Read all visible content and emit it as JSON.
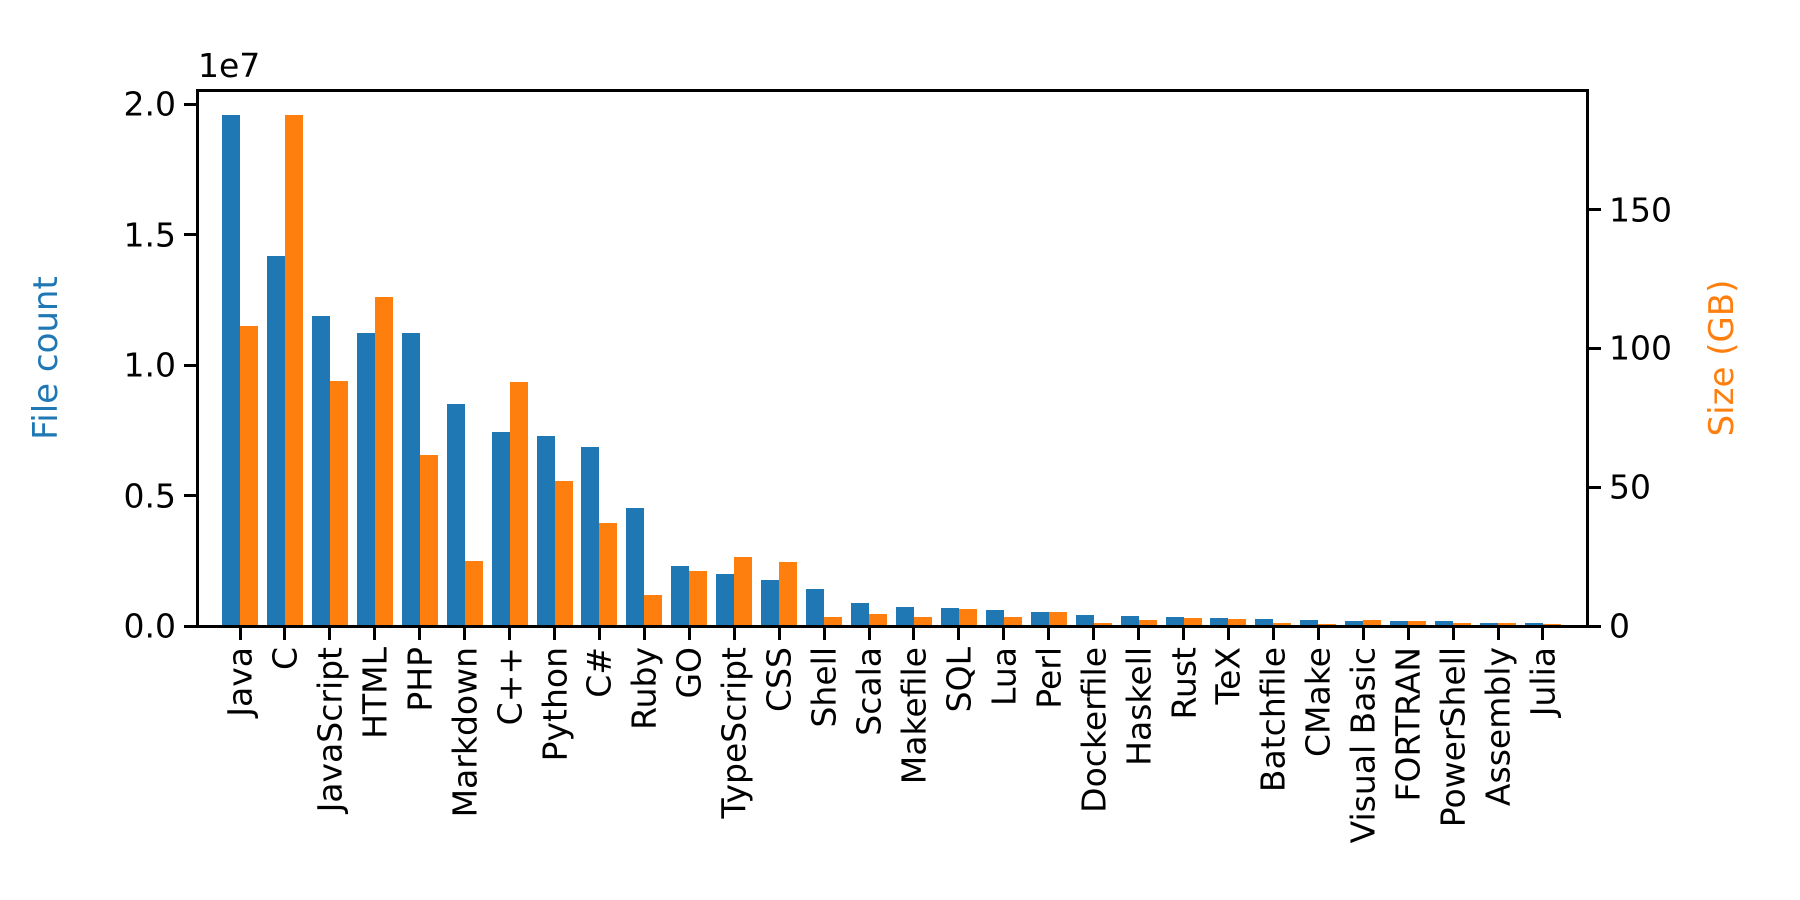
{
  "chart_data": {
    "type": "bar",
    "title": "",
    "grid": false,
    "legend_position": "none",
    "categories": [
      "Java",
      "C",
      "JavaScript",
      "HTML",
      "PHP",
      "Markdown",
      "C++",
      "Python",
      "C#",
      "Ruby",
      "GO",
      "TypeScript",
      "CSS",
      "Shell",
      "Scala",
      "Makefile",
      "SQL",
      "Lua",
      "Perl",
      "Dockerfile",
      "Haskell",
      "Rust",
      "TeX",
      "Batchfile",
      "CMake",
      "Visual Basic",
      "FORTRAN",
      "PowerShell",
      "Assembly",
      "Julia"
    ],
    "series": [
      {
        "name": "File count",
        "axis": "left",
        "color": "#1f77b4",
        "values": [
          19548190,
          14143113,
          11839883,
          11178557,
          11177610,
          8464626,
          7380520,
          7226626,
          6811652,
          4473331,
          2265436,
          1940406,
          1734406,
          1385648,
          835755,
          679430,
          656671,
          578554,
          497949,
          366505,
          340623,
          322431,
          251015,
          236945,
          175282,
          155652,
          142038,
          136846,
          82905,
          58317
        ]
      },
      {
        "name": "Size (GB)",
        "axis": "right",
        "color": "#ff7f0e",
        "values": [
          107.7,
          183.83,
          87.82,
          118.12,
          61.41,
          23.09,
          87.73,
          52.03,
          36.83,
          10.95,
          19.28,
          24.59,
          22.85,
          3.01,
          3.87,
          2.92,
          5.67,
          2.81,
          4.7,
          0.71,
          1.85,
          2.68,
          2.15,
          0.7,
          0.54,
          1.91,
          1.62,
          0.69,
          0.78,
          0.29
        ]
      }
    ],
    "left_axis": {
      "label": "File count",
      "color": "#1f77b4",
      "offset_label": "1e7",
      "tick_labels": [
        "0.0",
        "0.5",
        "1.0",
        "1.5",
        "2.0"
      ],
      "tick_values_e7": [
        0,
        0.5,
        1.0,
        1.5,
        2.0
      ],
      "range_e7": [
        0,
        2.054
      ]
    },
    "right_axis": {
      "label": "Size (GB)",
      "color": "#ff7f0e",
      "tick_labels": [
        "0",
        "50",
        "100",
        "150"
      ],
      "tick_values": [
        0,
        50,
        100,
        150
      ],
      "range": [
        0,
        193
      ]
    },
    "x_axis": {
      "label": "",
      "tick_label_rotation_deg": 90
    }
  }
}
